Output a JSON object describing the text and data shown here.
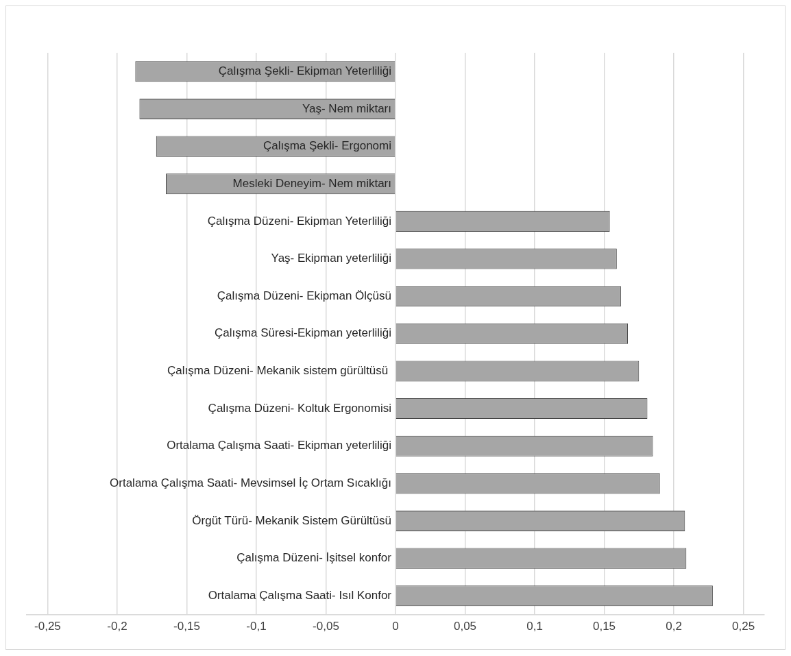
{
  "chart_data": {
    "type": "bar",
    "orientation": "horizontal",
    "categories": [
      "Çalışma Şekli- Ekipman Yeterliliği",
      "Yaş- Nem miktarı",
      "Çalışma Şekli- Ergonomi",
      "Mesleki Deneyim- Nem miktarı",
      "Çalışma Düzeni- Ekipman Yeterliliği",
      "Yaş- Ekipman yeterliliği",
      "Çalışma Düzeni- Ekipman Ölçüsü",
      "Çalışma Süresi-Ekipman yeterliliği",
      "Çalışma Düzeni- Mekanik sistem gürültüsü ",
      "Çalışma Düzeni- Koltuk Ergonomisi",
      "Ortalama Çalışma Saati- Ekipman yeterliliği",
      "Ortalama Çalışma Saati- Mevsimsel İç Ortam Sıcaklığı",
      "Örgüt Türü- Mekanik Sistem Gürültüsü",
      "Çalışma Düzeni- İşitsel konfor",
      "Ortalama Çalışma Saati- Isıl Konfor"
    ],
    "values": [
      -0.187,
      -0.184,
      -0.172,
      -0.165,
      0.154,
      0.159,
      0.162,
      0.167,
      0.175,
      0.181,
      0.185,
      0.19,
      0.208,
      0.209,
      0.228
    ],
    "color": "#a6a6a6",
    "xlim": [
      -0.265,
      0.265
    ],
    "xticks": [
      {
        "value": -0.25,
        "label": "-0,25"
      },
      {
        "value": -0.2,
        "label": "-0,2"
      },
      {
        "value": -0.15,
        "label": "-0,15"
      },
      {
        "value": -0.1,
        "label": "-0,1"
      },
      {
        "value": -0.05,
        "label": "-0,05"
      },
      0,
      {
        "value": 0.05,
        "label": "0,05"
      },
      {
        "value": 0.1,
        "label": "0,1"
      },
      {
        "value": 0.15,
        "label": "0,15"
      },
      {
        "value": 0.2,
        "label": "0,2"
      },
      {
        "value": 0.25,
        "label": "0,25"
      }
    ],
    "grid": "x"
  }
}
